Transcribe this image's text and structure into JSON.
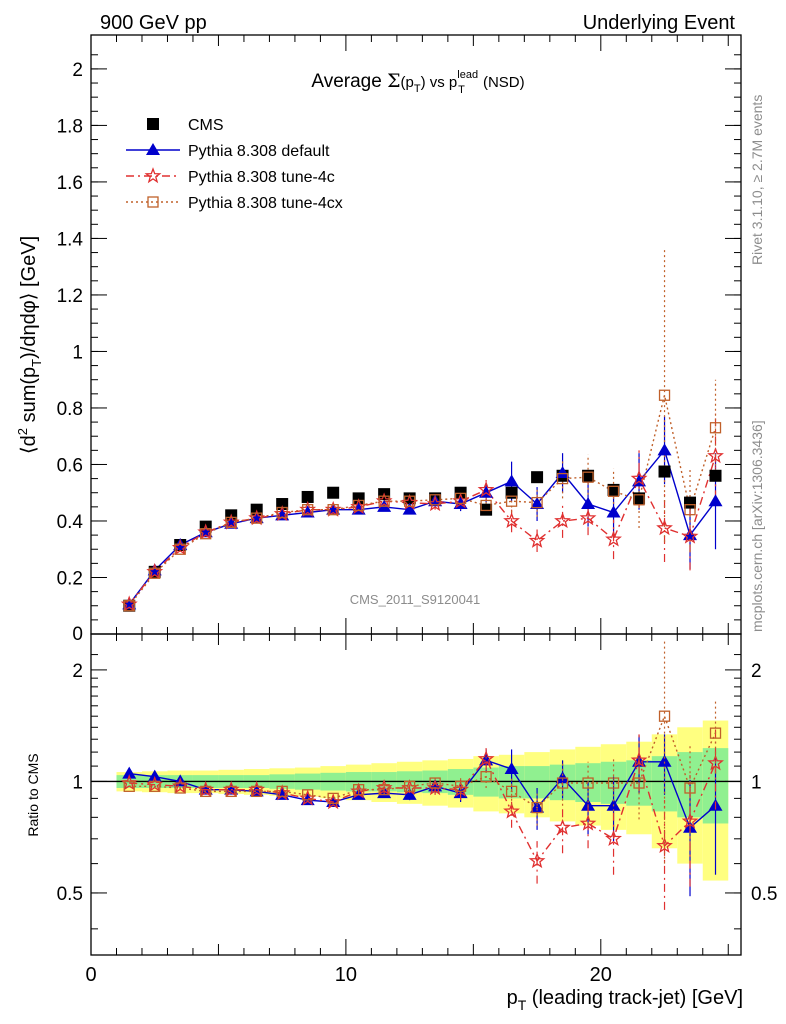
{
  "header": {
    "left": "900 GeV pp",
    "right": "Underlying Event"
  },
  "side_labels": {
    "rivet": "Rivet 3.1.10, ≥ 2.7M events",
    "mcplots": "mcplots.cern.ch [arXiv:1306.3436]"
  },
  "chart_data": [
    {
      "type": "scatter",
      "panel": "main",
      "title": "Average Σ(pT) vs pT^lead (NSD)",
      "ylabel": "⟨d² sum(pT)/dηdφ⟩ [GeV]",
      "xlabel": "",
      "watermark": "CMS_2011_S9120041",
      "xlim": [
        0,
        25.5
      ],
      "ylim": [
        0,
        2.12
      ],
      "xticks": [
        0,
        10,
        20
      ],
      "yticks": [
        0.2,
        0.4,
        0.6,
        0.8,
        1,
        1.2,
        1.4,
        1.6,
        1.8,
        2
      ],
      "legend_position": "top-left",
      "x": [
        1.5,
        2.5,
        3.5,
        4.5,
        5.5,
        6.5,
        7.5,
        8.5,
        9.5,
        10.5,
        11.5,
        12.5,
        13.5,
        14.5,
        15.5,
        16.5,
        17.5,
        18.5,
        19.5,
        20.5,
        21.5,
        22.5,
        23.5,
        24.5
      ],
      "series": [
        {
          "name": "CMS",
          "style": "data",
          "color": "#000000",
          "values": [
            0.1,
            0.22,
            0.315,
            0.38,
            0.42,
            0.44,
            0.46,
            0.485,
            0.5,
            0.48,
            0.495,
            0.48,
            0.48,
            0.5,
            0.44,
            0.5,
            0.555,
            0.56,
            0.56,
            0.51,
            0.48,
            0.575,
            0.465,
            0.56
          ]
        },
        {
          "name": "Pythia 8.308 default",
          "style": "solid",
          "color": "#0000cc",
          "values": [
            0.105,
            0.225,
            0.315,
            0.36,
            0.39,
            0.41,
            0.42,
            0.43,
            0.44,
            0.44,
            0.45,
            0.44,
            0.47,
            0.46,
            0.5,
            0.54,
            0.46,
            0.57,
            0.46,
            0.43,
            0.54,
            0.65,
            0.35,
            0.47
          ],
          "errors": [
            0,
            0,
            0,
            0,
            0,
            0,
            0,
            0,
            0,
            0.01,
            0.01,
            0.015,
            0.02,
            0.025,
            0.035,
            0.07,
            0.06,
            0.07,
            0.08,
            0.09,
            0.1,
            0.12,
            0.12,
            0.17
          ]
        },
        {
          "name": "Pythia 8.308 tune-4c",
          "style": "dashdot",
          "color": "#e03030",
          "values": [
            0.105,
            0.22,
            0.305,
            0.36,
            0.395,
            0.41,
            0.425,
            0.44,
            0.44,
            0.45,
            0.47,
            0.465,
            0.46,
            0.47,
            0.51,
            0.4,
            0.33,
            0.4,
            0.41,
            0.335,
            0.55,
            0.375,
            0.345,
            0.63
          ],
          "errors": [
            0,
            0,
            0,
            0,
            0,
            0,
            0,
            0,
            0,
            0.01,
            0.015,
            0.015,
            0.02,
            0.03,
            0.035,
            0.04,
            0.04,
            0.06,
            0.06,
            0.07,
            0.1,
            0.12,
            0.12,
            0.15
          ]
        },
        {
          "name": "Pythia 8.308 tune-4cx",
          "style": "dotted",
          "color": "#c0602a",
          "values": [
            0.1,
            0.215,
            0.3,
            0.355,
            0.395,
            0.41,
            0.43,
            0.44,
            0.44,
            0.455,
            0.47,
            0.47,
            0.475,
            0.48,
            0.455,
            0.47,
            0.465,
            0.55,
            0.555,
            0.505,
            0.475,
            0.845,
            0.44,
            0.73
          ],
          "errors": [
            0,
            0,
            0,
            0,
            0,
            0,
            0,
            0,
            0,
            0.01,
            0.015,
            0.015,
            0.02,
            0.025,
            0.03,
            0.04,
            0.05,
            0.07,
            0.08,
            0.08,
            0.1,
            0.52,
            0.15,
            0.17
          ]
        }
      ]
    },
    {
      "type": "scatter",
      "panel": "ratio",
      "ylabel": "Ratio to CMS",
      "xlabel": "pT (leading track-jet) [GeV]",
      "xlim": [
        0,
        25.5
      ],
      "ylim": [
        0.34,
        2.5
      ],
      "log_y": true,
      "yticks": [
        0.5,
        1,
        2
      ],
      "xticks": [
        0,
        10,
        20
      ],
      "x": [
        1.5,
        2.5,
        3.5,
        4.5,
        5.5,
        6.5,
        7.5,
        8.5,
        9.5,
        10.5,
        11.5,
        12.5,
        13.5,
        14.5,
        15.5,
        16.5,
        17.5,
        18.5,
        19.5,
        20.5,
        21.5,
        22.5,
        23.5,
        24.5
      ],
      "band_green_halfwidth": [
        0.04,
        0.04,
        0.04,
        0.04,
        0.04,
        0.04,
        0.045,
        0.05,
        0.055,
        0.06,
        0.06,
        0.065,
        0.07,
        0.08,
        0.09,
        0.1,
        0.1,
        0.11,
        0.12,
        0.13,
        0.14,
        0.17,
        0.2,
        0.23
      ],
      "band_yellow_halfwidth": [
        0.06,
        0.065,
        0.07,
        0.07,
        0.075,
        0.08,
        0.085,
        0.09,
        0.1,
        0.11,
        0.12,
        0.13,
        0.14,
        0.15,
        0.17,
        0.18,
        0.2,
        0.22,
        0.24,
        0.26,
        0.28,
        0.34,
        0.4,
        0.46
      ],
      "series": [
        {
          "name": "Pythia 8.308 default",
          "color": "#0000cc",
          "values": [
            1.05,
            1.03,
            1.0,
            0.95,
            0.95,
            0.94,
            0.92,
            0.89,
            0.88,
            0.92,
            0.93,
            0.92,
            0.97,
            0.93,
            1.14,
            1.08,
            0.85,
            1.02,
            0.86,
            0.86,
            1.13,
            1.13,
            0.75,
            0.86
          ],
          "errors": [
            0,
            0,
            0,
            0,
            0,
            0,
            0,
            0,
            0,
            0.02,
            0.02,
            0.03,
            0.04,
            0.05,
            0.08,
            0.14,
            0.11,
            0.12,
            0.14,
            0.17,
            0.2,
            0.21,
            0.26,
            0.3
          ]
        },
        {
          "name": "Pythia 8.308 tune-4c",
          "color": "#e03030",
          "values": [
            0.99,
            0.98,
            0.97,
            0.95,
            0.95,
            0.95,
            0.93,
            0.9,
            0.88,
            0.94,
            0.96,
            0.96,
            0.96,
            0.95,
            1.15,
            0.83,
            0.61,
            0.75,
            0.77,
            0.7,
            1.14,
            0.67,
            0.78,
            1.12
          ],
          "errors": [
            0,
            0,
            0,
            0,
            0,
            0,
            0,
            0,
            0,
            0.02,
            0.03,
            0.03,
            0.04,
            0.06,
            0.08,
            0.08,
            0.08,
            0.11,
            0.11,
            0.14,
            0.2,
            0.22,
            0.26,
            0.28
          ]
        },
        {
          "name": "Pythia 8.308 tune-4cx",
          "color": "#c0602a",
          "values": [
            0.97,
            0.97,
            0.96,
            0.94,
            0.94,
            0.94,
            0.94,
            0.92,
            0.9,
            0.95,
            0.95,
            0.97,
            0.99,
            0.97,
            1.03,
            0.94,
            0.85,
            0.99,
            0.99,
            0.99,
            0.99,
            1.5,
            0.96,
            1.35
          ],
          "errors": [
            0,
            0,
            0,
            0,
            0,
            0,
            0,
            0,
            0,
            0.02,
            0.03,
            0.03,
            0.04,
            0.05,
            0.07,
            0.08,
            0.09,
            0.13,
            0.14,
            0.16,
            0.2,
            0.9,
            0.3,
            0.3
          ]
        }
      ]
    }
  ]
}
